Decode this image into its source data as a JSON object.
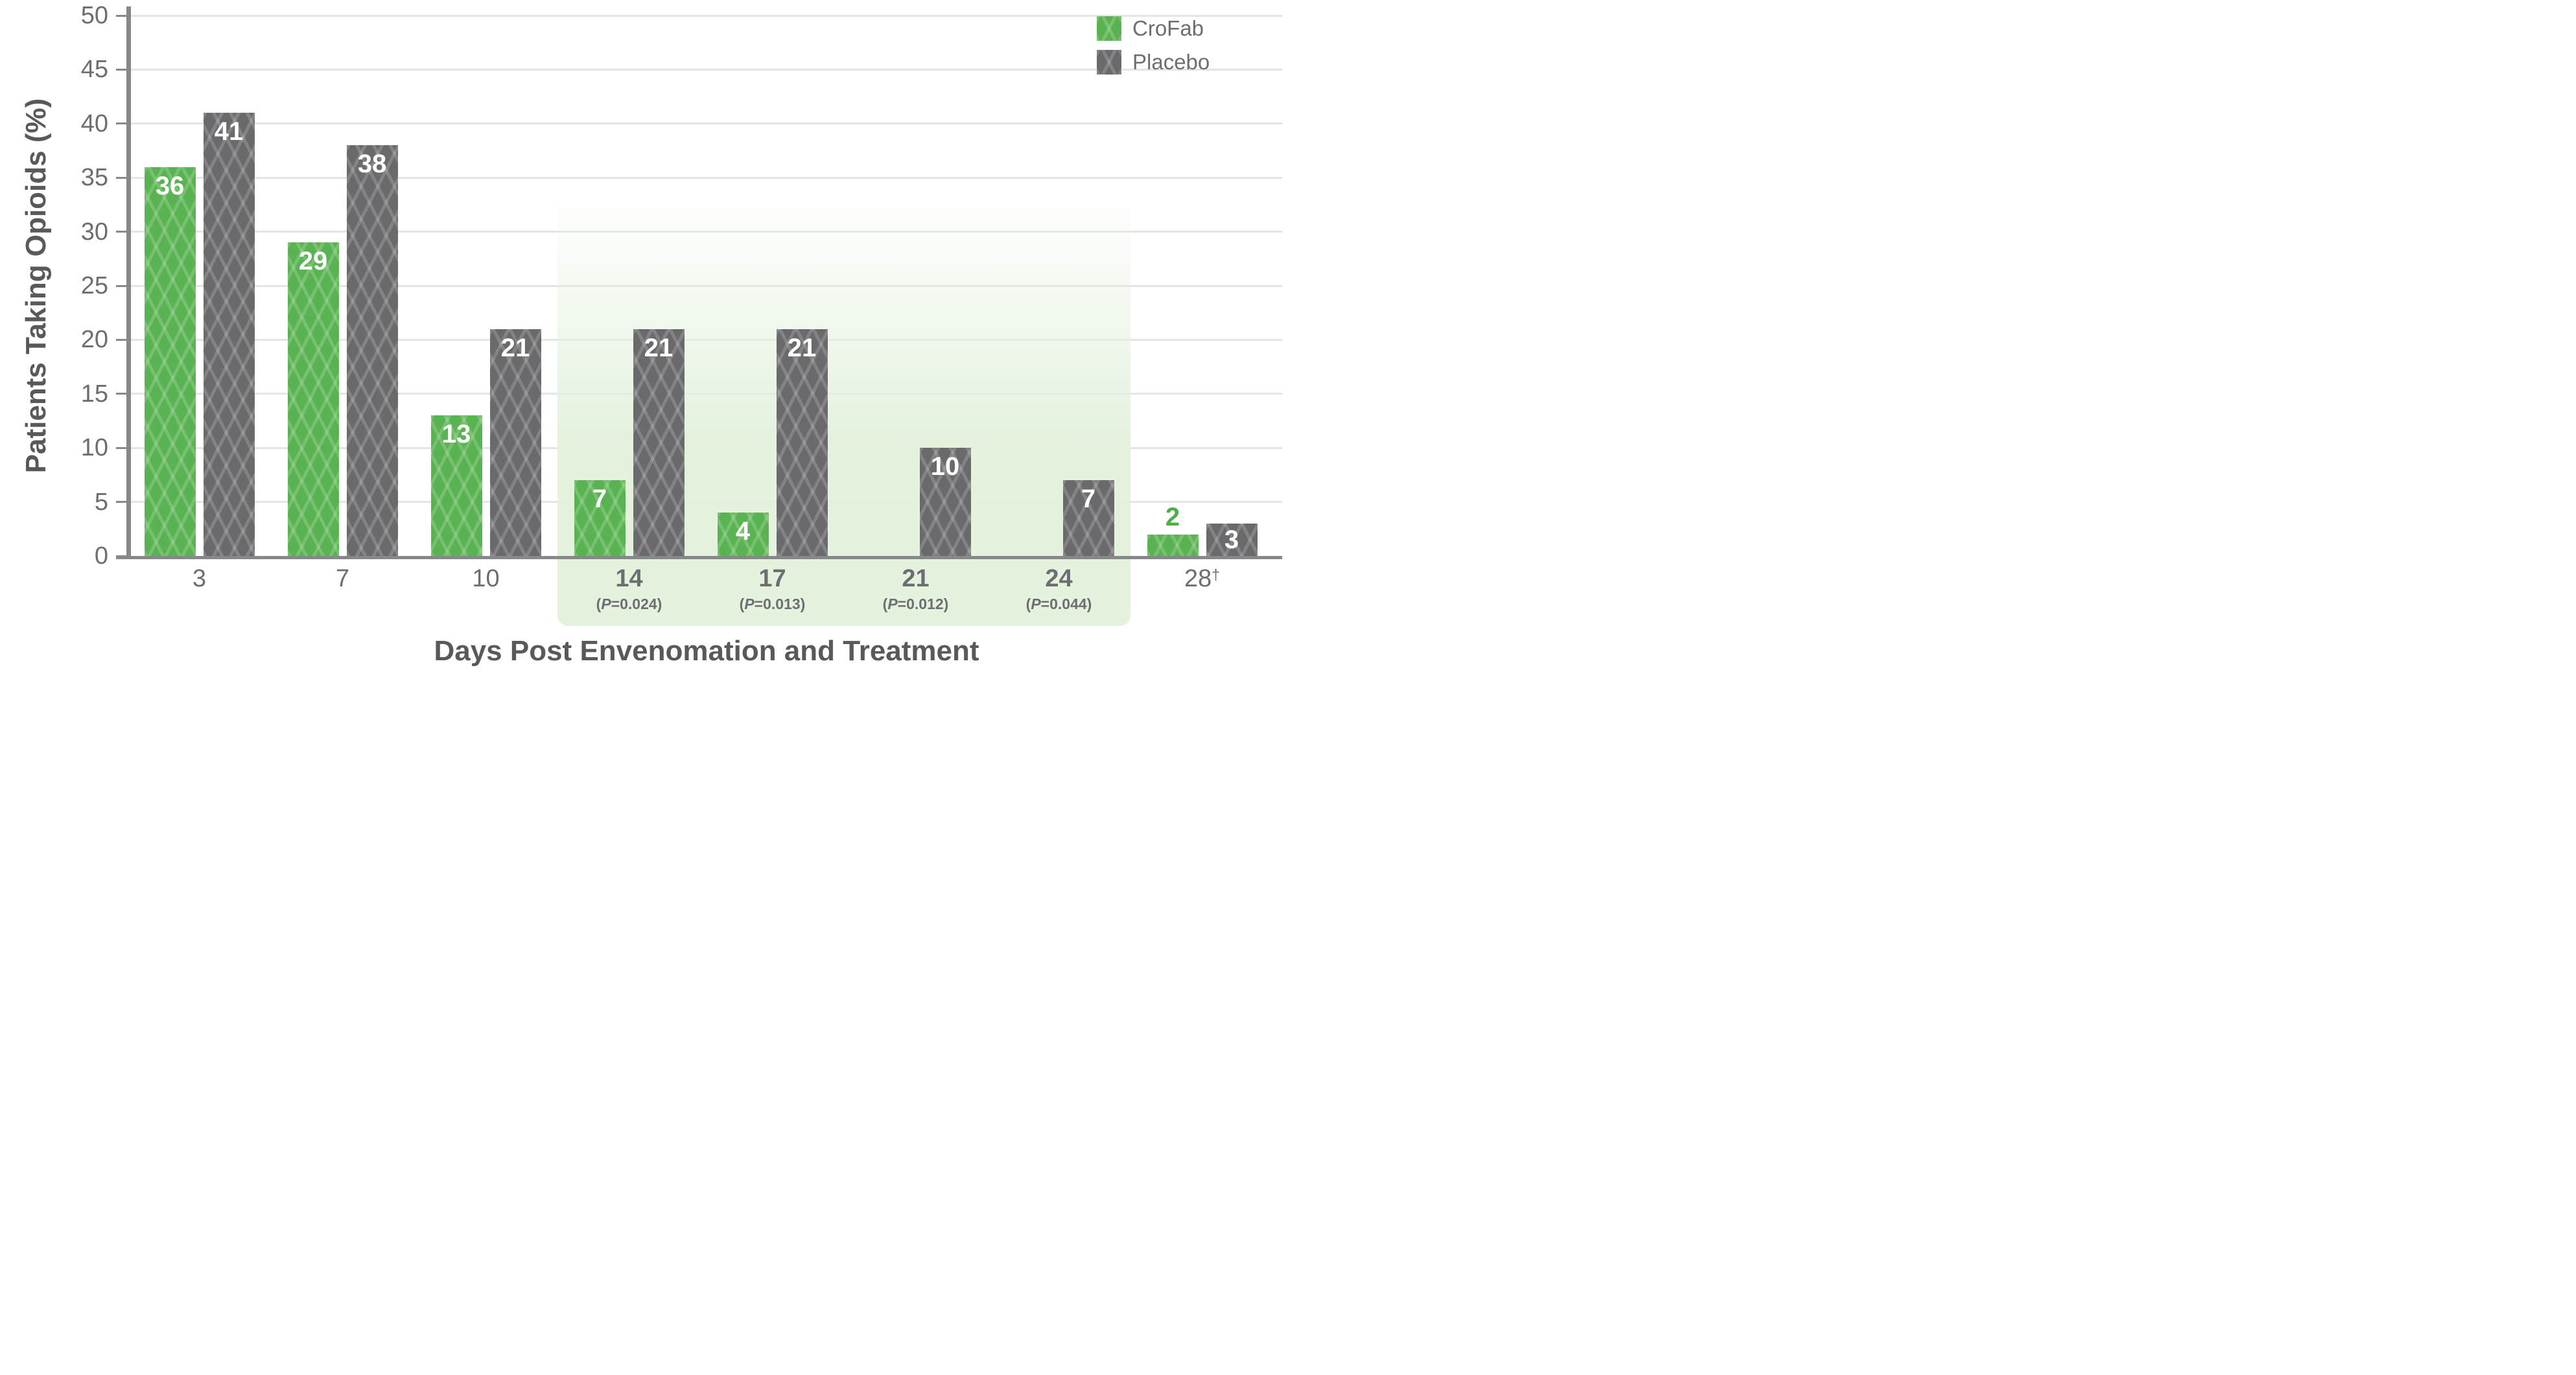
{
  "chart_data": {
    "type": "bar",
    "title": "",
    "ylabel": "Patients Taking Opioids (%)",
    "xlabel": "Days Post Envenomation and Treatment",
    "ylim": [
      0,
      50
    ],
    "yticks": [
      0,
      5,
      10,
      15,
      20,
      25,
      30,
      35,
      40,
      45,
      50
    ],
    "grid": true,
    "legend_position": "top-right",
    "categories": [
      {
        "day": "3"
      },
      {
        "day": "7"
      },
      {
        "day": "10"
      },
      {
        "day": "14",
        "p_value": "(P=0.024)"
      },
      {
        "day": "17",
        "p_value": "(P=0.013)"
      },
      {
        "day": "21",
        "p_value": "(P=0.012)"
      },
      {
        "day": "24",
        "p_value": "(P=0.044)"
      },
      {
        "day": "28",
        "note_marker": "†"
      }
    ],
    "series": [
      {
        "name": "CroFab",
        "color": "#5ab352",
        "values": [
          36,
          29,
          13,
          7,
          4,
          null,
          null,
          2
        ]
      },
      {
        "name": "Placebo",
        "color": "#6a696b",
        "values": [
          41,
          38,
          21,
          21,
          21,
          10,
          7,
          3
        ]
      }
    ],
    "value_label_color": "#ffffff",
    "label_overrides": [
      {
        "series_index": 0,
        "category_index": 7,
        "position": "above",
        "color": "#4fae48"
      }
    ],
    "highlight": {
      "start_category_index": 3,
      "end_category_index": 6,
      "color": "#e3f1dc"
    }
  },
  "colors": {
    "axis": "#87888a",
    "gridline": "#e4e5e5",
    "tick_label": "#6d6e71",
    "axis_title": "#58595b",
    "legend_label": "#6d6e71"
  }
}
